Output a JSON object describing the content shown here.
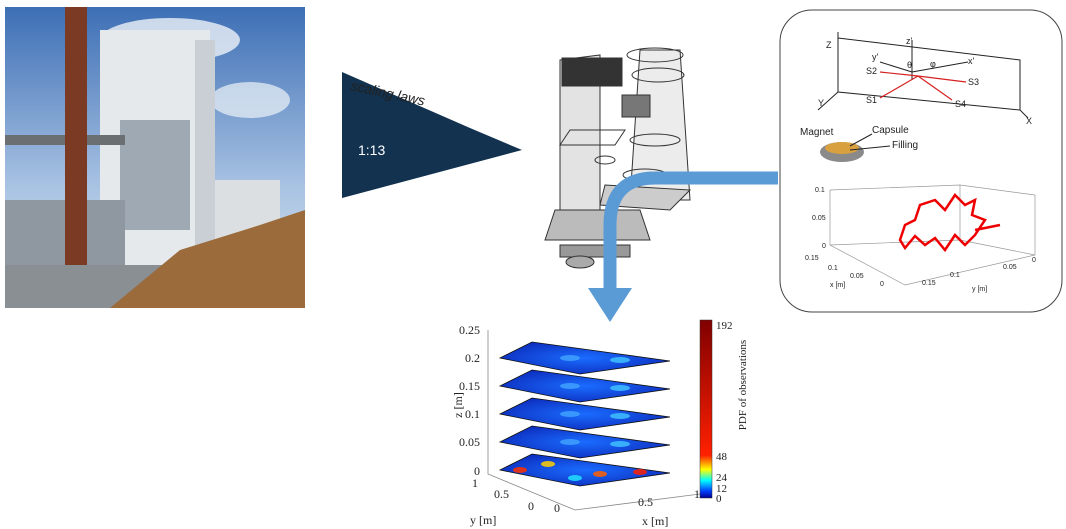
{
  "scaling_arrow": {
    "label": "scaling laws",
    "ratio": "1:13"
  },
  "sensor_diagram": {
    "axes": [
      "Z",
      "Y",
      "X"
    ],
    "local_axes": [
      "z'",
      "y'",
      "x'"
    ],
    "angles": [
      "θ",
      "φ"
    ],
    "sensors": [
      "S2",
      "S3",
      "S1",
      "S4"
    ]
  },
  "capsule": {
    "labels": [
      "Magnet",
      "Capsule",
      "Filling"
    ]
  },
  "trajectory_plot": {
    "z_ticks": [
      "0.1",
      "0.05",
      "0"
    ],
    "x_ticks": [
      "0.15",
      "0.1",
      "0.05",
      "0"
    ],
    "x_label": "x [m]",
    "y_ticks": [
      "0.15",
      "0.1",
      "0.05",
      "0"
    ],
    "y_label": "y [m]"
  },
  "pdf_plot": {
    "z_ticks": [
      "0.25",
      "0.2",
      "0.15",
      "0.1",
      "0.05",
      "0"
    ],
    "z_label": "z [m]",
    "y_ticks": [
      "1",
      "0.5",
      "0"
    ],
    "y_label": "y [m]",
    "x_ticks": [
      "0",
      "0.5",
      "1"
    ],
    "x_label": "x [m]",
    "colorbar_ticks": [
      "192",
      "48",
      "24",
      "12",
      "0"
    ],
    "colorbar_label": "PDF of observations"
  }
}
